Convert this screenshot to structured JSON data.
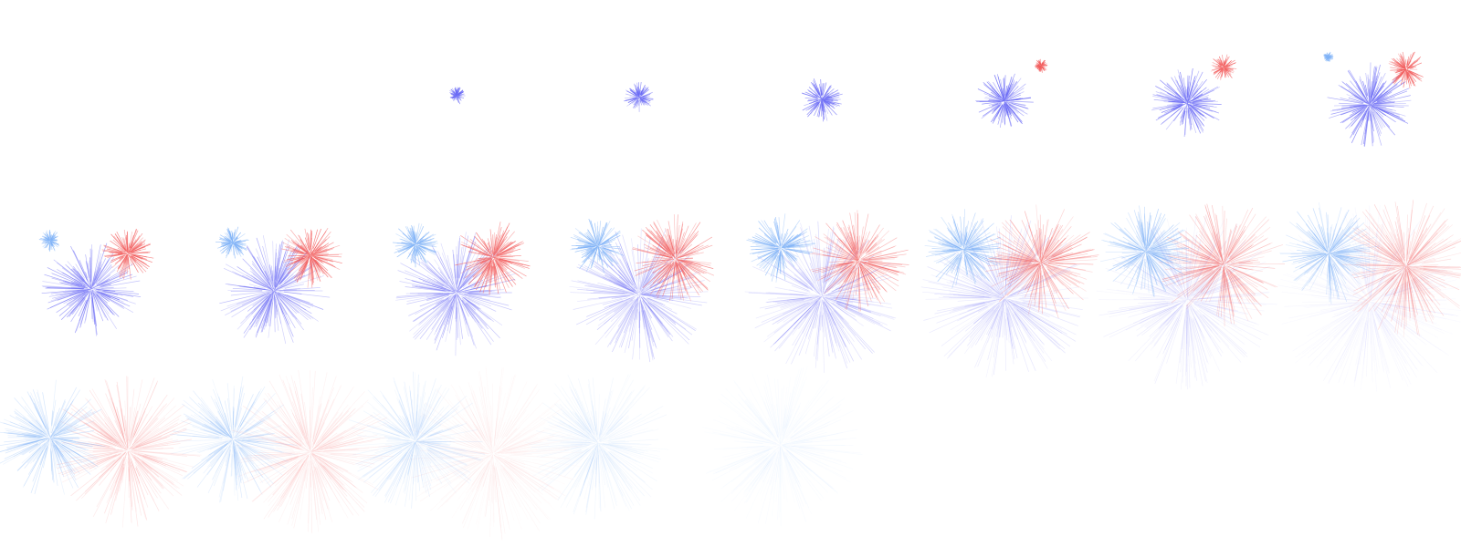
{
  "sprite_sheet": {
    "description_free": true,
    "grid": {
      "columns": 8,
      "rows": 3,
      "frame_count": 21
    },
    "colors": {
      "blue": "#6a6af5",
      "light_blue": "#7fb2f7",
      "red": "#f25c5c"
    },
    "bursts": [
      {
        "id": "blue",
        "color_key": "blue",
        "start_frame": 2,
        "peak_frame": 10
      },
      {
        "id": "red",
        "color_key": "red",
        "start_frame": 5,
        "peak_frame": 13
      },
      {
        "id": "light_blue",
        "color_key": "light_blue",
        "start_frame": 7,
        "peak_frame": 15
      }
    ]
  }
}
